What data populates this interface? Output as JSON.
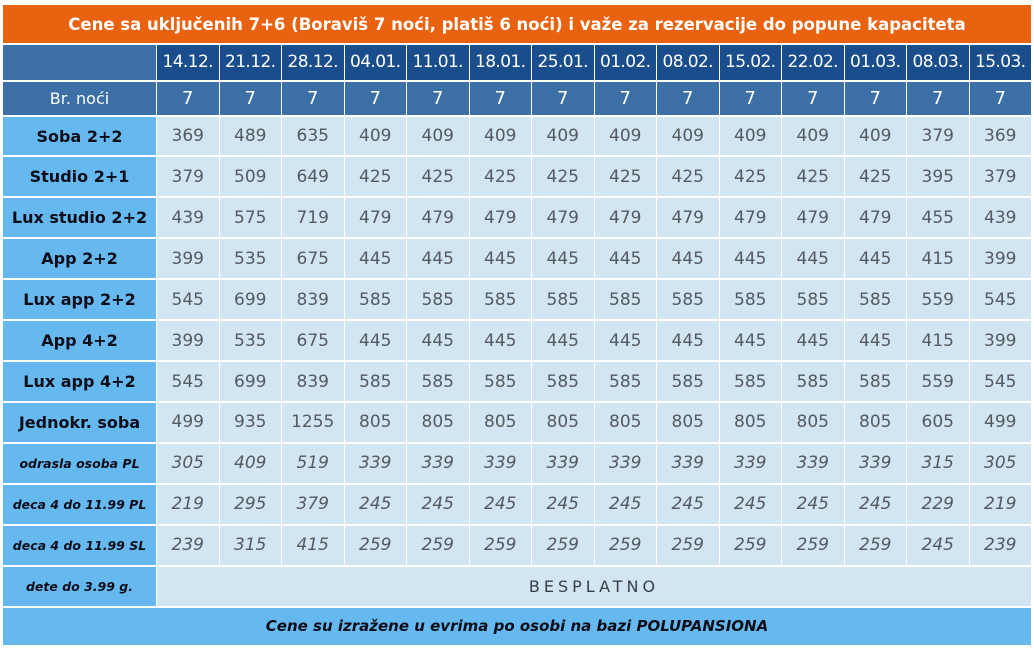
{
  "title": "Cene sa uključenih 7+6 (Boraviš 7 noći, platiš 6 noći) i važe za rezervacije do popune kapaciteta",
  "dates": [
    "14.12.",
    "21.12.",
    "28.12.",
    "04.01.",
    "11.01.",
    "18.01.",
    "25.01.",
    "01.02.",
    "08.02.",
    "15.02.",
    "22.02.",
    "01.03.",
    "08.03.",
    "15.03."
  ],
  "nights_label": "Br. noći",
  "nights": [
    "7",
    "7",
    "7",
    "7",
    "7",
    "7",
    "7",
    "7",
    "7",
    "7",
    "7",
    "7",
    "7",
    "7"
  ],
  "rows": [
    {
      "label": "Soba 2+2",
      "values": [
        "369",
        "489",
        "635",
        "409",
        "409",
        "409",
        "409",
        "409",
        "409",
        "409",
        "409",
        "409",
        "379",
        "369"
      ]
    },
    {
      "label": "Studio 2+1",
      "values": [
        "379",
        "509",
        "649",
        "425",
        "425",
        "425",
        "425",
        "425",
        "425",
        "425",
        "425",
        "425",
        "395",
        "379"
      ]
    },
    {
      "label": "Lux studio 2+2",
      "values": [
        "439",
        "575",
        "719",
        "479",
        "479",
        "479",
        "479",
        "479",
        "479",
        "479",
        "479",
        "479",
        "455",
        "439"
      ]
    },
    {
      "label": "App 2+2",
      "values": [
        "399",
        "535",
        "675",
        "445",
        "445",
        "445",
        "445",
        "445",
        "445",
        "445",
        "445",
        "445",
        "415",
        "399"
      ]
    },
    {
      "label": "Lux app 2+2",
      "values": [
        "545",
        "699",
        "839",
        "585",
        "585",
        "585",
        "585",
        "585",
        "585",
        "585",
        "585",
        "585",
        "559",
        "545"
      ]
    },
    {
      "label": "App 4+2",
      "values": [
        "399",
        "535",
        "675",
        "445",
        "445",
        "445",
        "445",
        "445",
        "445",
        "445",
        "445",
        "445",
        "415",
        "399"
      ]
    },
    {
      "label": "Lux app 4+2",
      "values": [
        "545",
        "699",
        "839",
        "585",
        "585",
        "585",
        "585",
        "585",
        "585",
        "585",
        "585",
        "585",
        "559",
        "545"
      ]
    },
    {
      "label": "Jednokr. soba",
      "values": [
        "499",
        "935",
        "1255",
        "805",
        "805",
        "805",
        "805",
        "805",
        "805",
        "805",
        "805",
        "805",
        "605",
        "499"
      ]
    },
    {
      "label": "odrasla osoba PL",
      "small": true,
      "values": [
        "305",
        "409",
        "519",
        "339",
        "339",
        "339",
        "339",
        "339",
        "339",
        "339",
        "339",
        "339",
        "315",
        "305"
      ]
    },
    {
      "label": "deca 4 do 11.99 PL",
      "small": true,
      "values": [
        "219",
        "295",
        "379",
        "245",
        "245",
        "245",
        "245",
        "245",
        "245",
        "245",
        "245",
        "245",
        "229",
        "219"
      ]
    },
    {
      "label": "deca 4 do 11.99 SL",
      "small": true,
      "values": [
        "239",
        "315",
        "415",
        "259",
        "259",
        "259",
        "259",
        "259",
        "259",
        "259",
        "259",
        "259",
        "245",
        "239"
      ]
    }
  ],
  "free_row": {
    "label": "dete do 3.99 g.",
    "value": "BESPLATNO"
  },
  "footer": "Cene su izražene u evrima po osobi na bazi POLUPANSIONA",
  "colors": {
    "title_bg": "#e8620f",
    "date_bg": "#1a4d8c",
    "nights_bg": "#3b6fa5",
    "label_bg": "#66b9ef",
    "cell_bg": "#d1e5f2"
  }
}
